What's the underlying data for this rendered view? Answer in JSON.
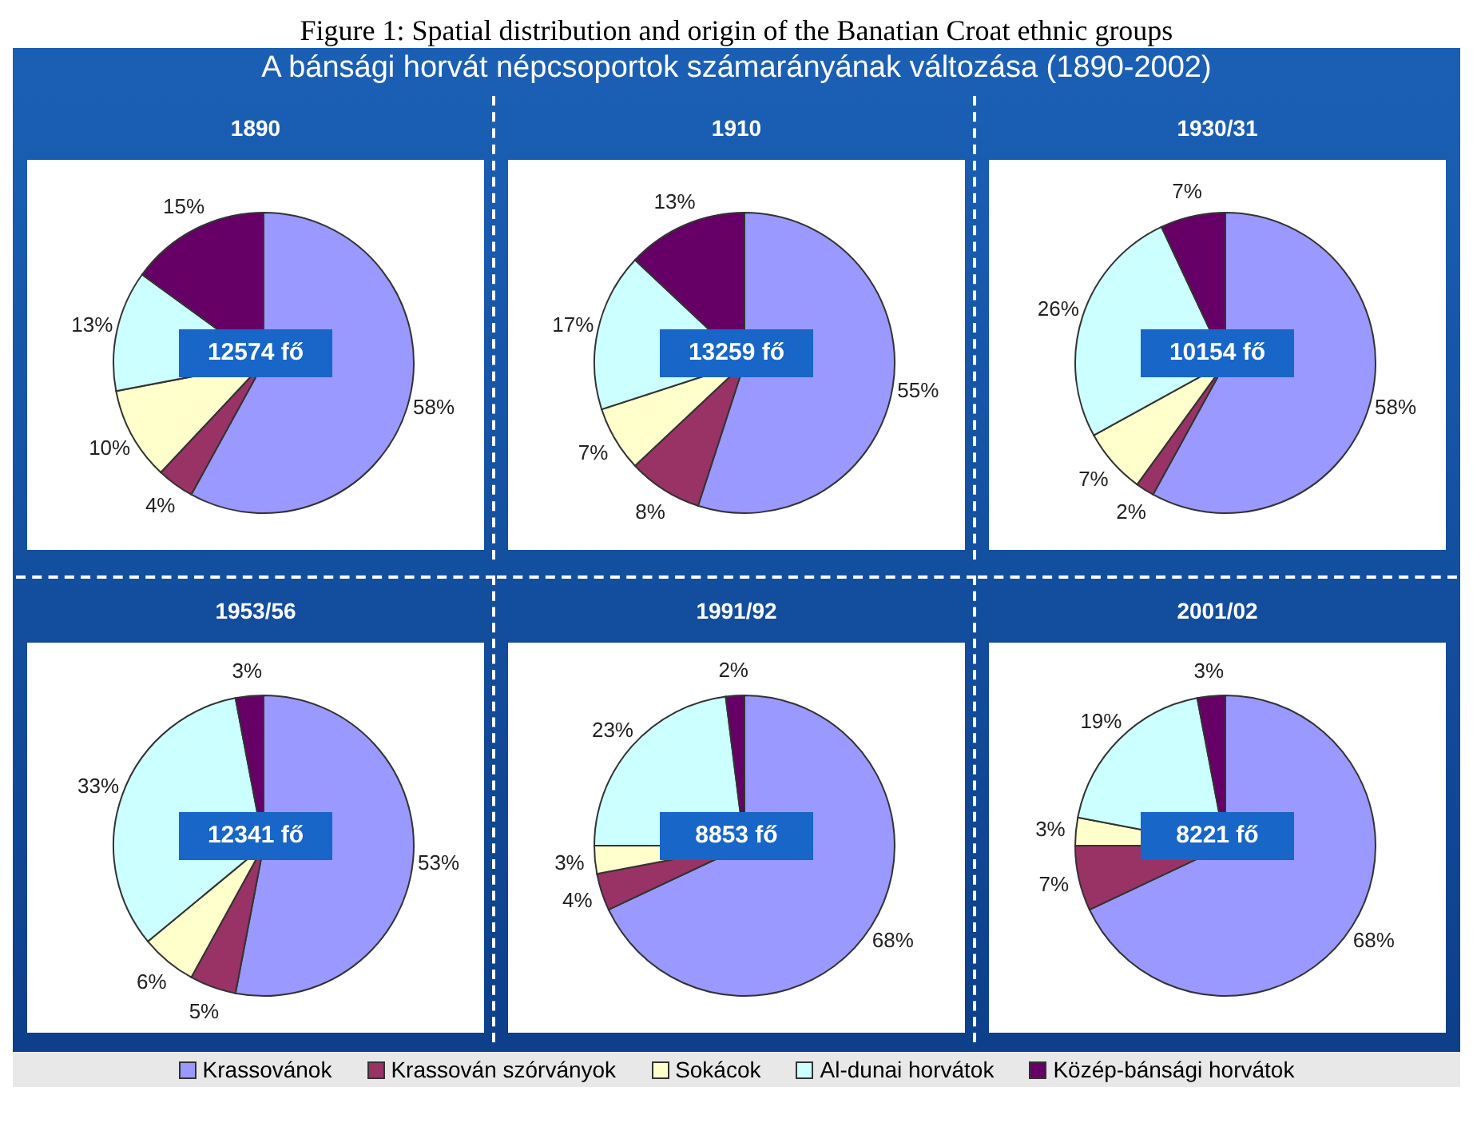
{
  "chart_data": [
    {
      "type": "other",
      "title": "Figure 1: Spatial distribution and origin of the Banatian Croat ethnic groups",
      "subtitle": "A bánsági horvát népcsoportok számarányának változása (1890-2002)"
    },
    {
      "type": "pie",
      "title": "1890",
      "categories": [
        "Krassovánok",
        "Krassován szórványok",
        "Sokácok",
        "Al-dunai horvátok",
        "Közép-bánsági horvátok"
      ],
      "values": [
        58,
        4,
        10,
        13,
        15
      ],
      "value_labels": [
        "58%",
        "4%",
        "10%",
        "13%",
        "15%"
      ],
      "colors": [
        "#9999ff",
        "#993366",
        "#ffffcc",
        "#ccffff",
        "#660066"
      ],
      "annotations": [
        "12574 fő"
      ],
      "legend": "bottom"
    },
    {
      "type": "pie",
      "title": "1910",
      "categories": [
        null,
        null,
        null,
        null,
        null
      ],
      "values": [
        55,
        8,
        7,
        17,
        13
      ],
      "value_labels": [
        "55%",
        "8%",
        "7%",
        "17%",
        "13%"
      ],
      "colors": [
        "#9999ff",
        "#993366",
        "#ffffcc",
        "#ccffff",
        "#660066"
      ],
      "annotations": [
        "13259 fő"
      ]
    },
    {
      "type": "pie",
      "title": "1930/31",
      "categories": [
        null,
        null,
        null,
        null,
        null
      ],
      "values": [
        58,
        2,
        7,
        26,
        7
      ],
      "value_labels": [
        "58%",
        "2%",
        "7%",
        "26%",
        "7%"
      ],
      "colors": [
        "#9999ff",
        "#993366",
        "#ffffcc",
        "#ccffff",
        "#660066"
      ],
      "annotations": [
        "10154 fő"
      ]
    },
    {
      "type": "pie",
      "title": "1953/56",
      "categories": [
        null,
        null,
        null,
        null,
        null
      ],
      "values": [
        53,
        5,
        6,
        33,
        3
      ],
      "value_labels": [
        "53%",
        "5%",
        "6%",
        "33%",
        "3%"
      ],
      "colors": [
        "#9999ff",
        "#993366",
        "#ffffcc",
        "#ccffff",
        "#660066"
      ],
      "annotations": [
        "12341 fő"
      ]
    },
    {
      "type": "pie",
      "title": "1991/92",
      "categories": [
        null,
        null,
        null,
        null,
        null
      ],
      "values": [
        68,
        4,
        3,
        23,
        2
      ],
      "value_labels": [
        "68%",
        "4%",
        "3%",
        "23%",
        "2%"
      ],
      "colors": [
        "#9999ff",
        "#993366",
        "#ffffcc",
        "#ccffff",
        "#660066"
      ],
      "annotations": [
        "8853 fő"
      ]
    },
    {
      "type": "pie",
      "title": "2001/02",
      "categories": [
        null,
        null,
        null,
        null,
        null
      ],
      "values": [
        68,
        7,
        3,
        19,
        3
      ],
      "value_labels": [
        "68%",
        "7%",
        "3%",
        "19%",
        "3%"
      ],
      "colors": [
        "#9999ff",
        "#993366",
        "#ffffcc",
        "#ccffff",
        "#660066"
      ],
      "annotations": [
        "8221 fő"
      ]
    }
  ]
}
